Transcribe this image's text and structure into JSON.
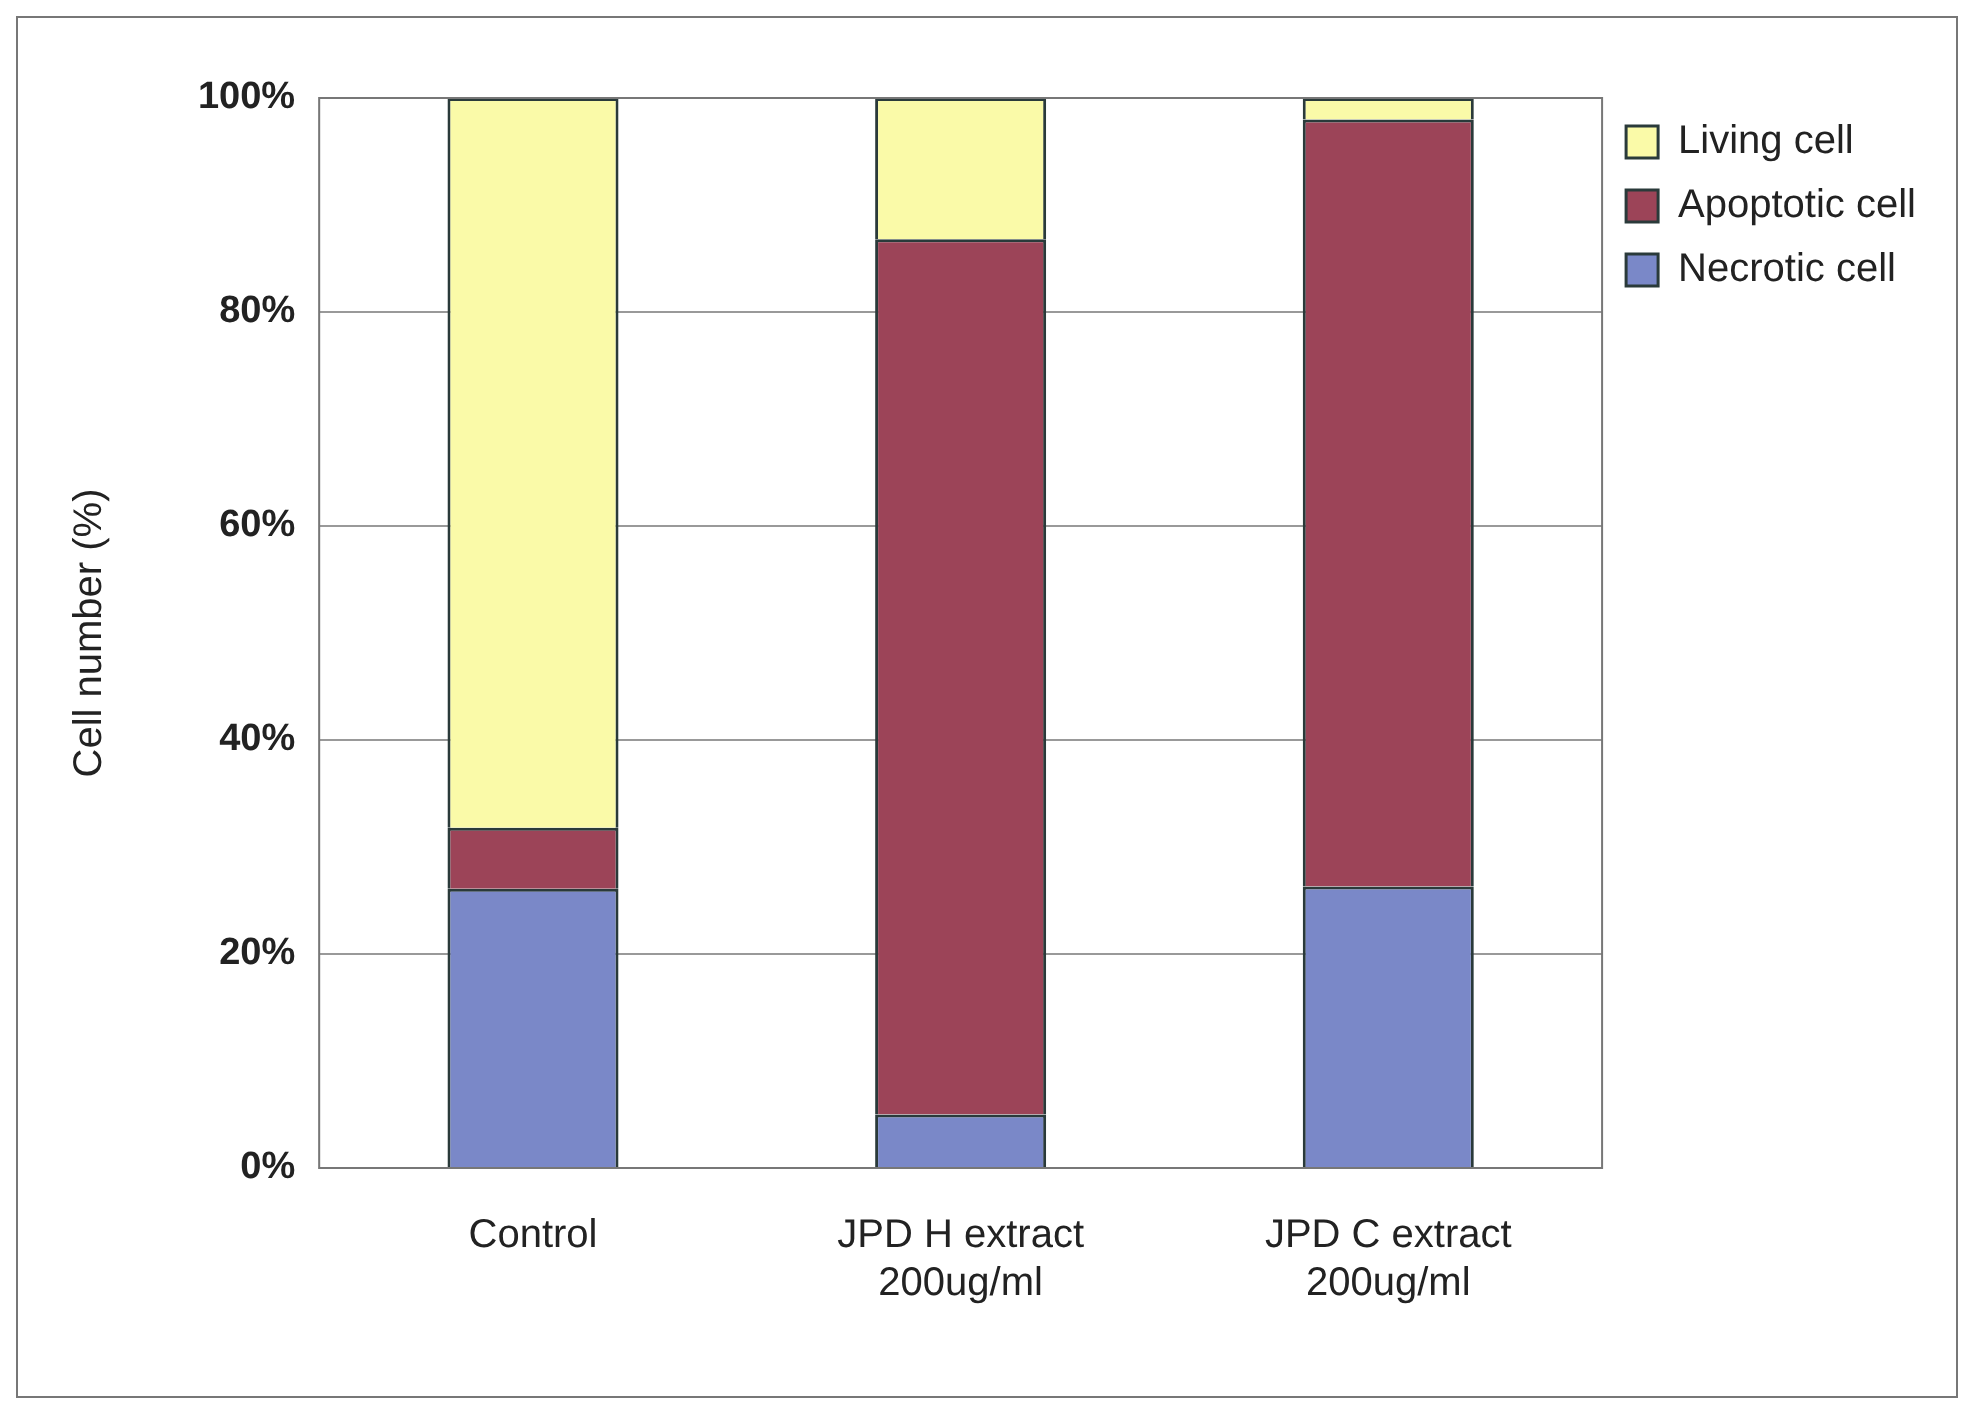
{
  "chart_data": {
    "type": "bar",
    "stacked": true,
    "ylabel": "Cell number (%)",
    "categories": [
      "Control",
      "JPD H extract\n200ug/ml",
      "JPD C extract\n200ug/ml"
    ],
    "series": [
      {
        "name": "Necrotic cell",
        "color": "#7a88c8",
        "values": [
          26.1,
          5.0,
          26.3
        ]
      },
      {
        "name": "Apoptotic cell",
        "color": "#9c4458",
        "values": [
          5.7,
          81.8,
          71.7
        ]
      },
      {
        "name": "Living cell",
        "color": "#fafaa8",
        "values": [
          68.2,
          13.2,
          2.0
        ]
      }
    ],
    "ylim": [
      0,
      100
    ],
    "yticks": [
      {
        "value": 0,
        "label": "0%"
      },
      {
        "value": 20,
        "label": "20%"
      },
      {
        "value": 40,
        "label": "40%"
      },
      {
        "value": 60,
        "label": "60%"
      },
      {
        "value": 80,
        "label": "80%"
      },
      {
        "value": 100,
        "label": "100%"
      }
    ],
    "grid": "y",
    "legend": "right"
  }
}
